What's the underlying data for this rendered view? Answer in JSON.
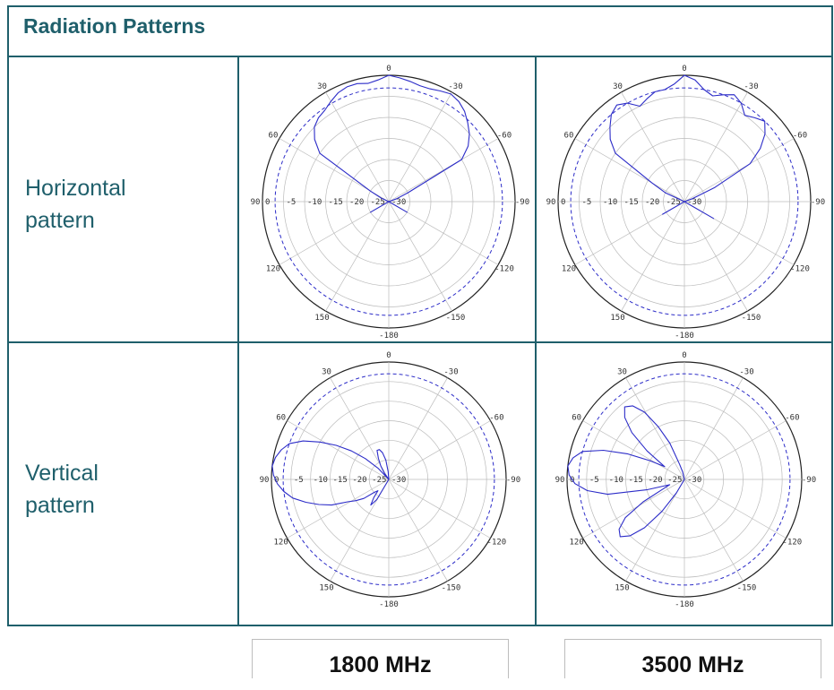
{
  "header": {
    "title": "Radiation Patterns"
  },
  "rows": [
    {
      "label_line1": "Horizontal",
      "label_line2": "pattern"
    },
    {
      "label_line1": "Vertical",
      "label_line2": "pattern"
    }
  ],
  "columns": [
    {
      "freq_label": "1800 MHz"
    },
    {
      "freq_label": "3500 MHz"
    }
  ],
  "colors": {
    "border": "#1f5f6b",
    "pattern": "#2c2cc8",
    "reference": "#2c2cc8",
    "grid": "#bbbbbb"
  },
  "chart_data": [
    {
      "type": "polar",
      "radial_ticks": [
        "0",
        "-5",
        "-10",
        "-15",
        "-20",
        "-25",
        "-30"
      ],
      "angle_ticks": [
        "0",
        "30",
        "-30",
        "60",
        "-60",
        "90",
        "-90",
        "120",
        "-120",
        "150",
        "-150",
        "-180"
      ],
      "reference_level_db": -3,
      "series_db": [
        0,
        -0.5,
        -1,
        -1.5,
        -1.5,
        -1,
        -0.5,
        -1,
        -2,
        -3.5,
        -5,
        -7,
        -10,
        -25,
        -28,
        -30,
        -30,
        -30,
        -30,
        -30,
        -30,
        -30,
        -30,
        -30,
        -25,
        -30,
        -30,
        -30,
        -30,
        -30,
        -30,
        -30,
        -30,
        -30,
        -30,
        -30,
        -30,
        -30,
        -30,
        -30,
        -30,
        -30,
        -30,
        -30,
        -30,
        -30,
        -30,
        -30,
        -25,
        -30,
        -30,
        -30,
        -30,
        -30,
        -30,
        -30,
        -30,
        -30,
        -30,
        -28,
        -25,
        -10,
        -7,
        -5,
        -4,
        -3.5,
        -2.5,
        -1.5,
        -1,
        -1,
        -1.5,
        -1
      ]
    },
    {
      "type": "polar",
      "radial_ticks": [
        "0",
        "-5",
        "-10",
        "-15",
        "-20",
        "-25",
        "-30"
      ],
      "angle_ticks": [
        "0",
        "30",
        "-30",
        "60",
        "-60",
        "90",
        "-90",
        "120",
        "-120",
        "150",
        "-150",
        "-180"
      ],
      "reference_level_db": -3,
      "series_db": [
        0,
        -1,
        -3,
        -4,
        -3,
        -2,
        -3,
        -5,
        -4,
        -3,
        -5,
        -8,
        -12,
        -22,
        -28,
        -30,
        -30,
        -30,
        -30,
        -30,
        -30,
        -30,
        -30,
        -30,
        -22,
        -30,
        -30,
        -30,
        -30,
        -30,
        -30,
        -30,
        -30,
        -30,
        -30,
        -30,
        -30,
        -30,
        -30,
        -30,
        -30,
        -30,
        -30,
        -30,
        -30,
        -30,
        -30,
        -30,
        -24,
        -30,
        -30,
        -30,
        -30,
        -30,
        -30,
        -30,
        -30,
        -30,
        -30,
        -25,
        -21,
        -10,
        -7,
        -5,
        -3,
        -2,
        -3,
        -5,
        -4,
        -3,
        -3,
        -2
      ]
    },
    {
      "type": "polar",
      "radial_ticks": [
        "0",
        "-5",
        "-10",
        "-15",
        "-20",
        "-25",
        "-30"
      ],
      "angle_ticks": [
        "0",
        "30",
        "-30",
        "60",
        "-60",
        "90",
        "-90",
        "120",
        "-120",
        "150",
        "-150",
        "-180"
      ],
      "reference_level_db": -3,
      "series_db": [
        -30,
        -30,
        -30,
        -30,
        -30,
        -30,
        -30,
        -30,
        -30,
        -30,
        -30,
        -30,
        -30,
        -30,
        -30,
        -30,
        -30,
        -30,
        -30,
        -30,
        -30,
        -30,
        -30,
        -30,
        -30,
        -30,
        -30,
        -30,
        -30,
        -30,
        -30,
        -30,
        -30,
        -30,
        -30,
        -30,
        -30,
        -30,
        -30,
        -30,
        -30,
        -30,
        -30,
        -30,
        -30,
        -30,
        -30,
        -30,
        -24,
        -22,
        -24,
        -26,
        -25,
        -22,
        -20,
        -18,
        -14,
        -11,
        -8,
        -5,
        -3,
        -1.5,
        -0.5,
        0,
        -0.5,
        -1.5,
        -3,
        -6,
        -10,
        -14,
        -18,
        -22,
        -26,
        -30,
        -28,
        -26,
        -24,
        -22,
        -22,
        -23,
        -25,
        -28
      ]
    },
    {
      "type": "polar",
      "radial_ticks": [
        "0",
        "-5",
        "-10",
        "-15",
        "-20",
        "-25",
        "-30"
      ],
      "angle_ticks": [
        "0",
        "30",
        "-30",
        "60",
        "-60",
        "90",
        "-90",
        "120",
        "-120",
        "150",
        "-150",
        "-180"
      ],
      "reference_level_db": -3,
      "series_db": [
        -30,
        -30,
        -30,
        -30,
        -30,
        -30,
        -30,
        -30,
        -30,
        -30,
        -30,
        -30,
        -30,
        -30,
        -30,
        -30,
        -30,
        -30,
        -30,
        -30,
        -30,
        -30,
        -30,
        -30,
        -30,
        -30,
        -30,
        -30,
        -30,
        -30,
        -30,
        -30,
        -30,
        -30,
        -30,
        -30,
        -30,
        -30,
        -30,
        -30,
        -30,
        -30,
        -30,
        -30,
        -30,
        -30,
        -30,
        -30,
        -26,
        -20,
        -14,
        -10,
        -8,
        -9,
        -12,
        -18,
        -24,
        -26,
        -20,
        -10,
        -5,
        -2,
        -0.5,
        0,
        -1,
        -3,
        -8,
        -14,
        -20,
        -24,
        -18,
        -12,
        -8,
        -6,
        -7,
        -10,
        -15,
        -20,
        -26,
        -28,
        -30,
        -30
      ]
    }
  ]
}
